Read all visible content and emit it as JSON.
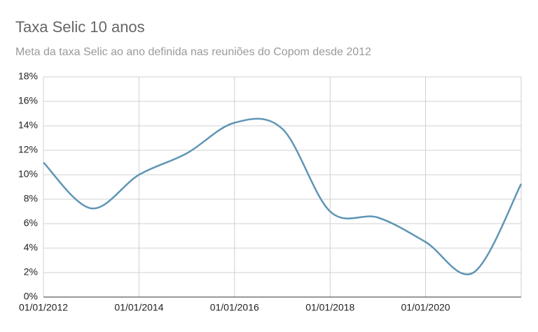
{
  "chart_data": {
    "type": "line",
    "title": "Taxa Selic 10 anos",
    "subtitle": "Meta da taxa Selic ao ano definida nas reuniões do Copom desde 2012",
    "x": [
      "2012-01-01",
      "2013-01-01",
      "2014-01-01",
      "2015-01-01",
      "2016-01-01",
      "2017-01-01",
      "2018-01-01",
      "2019-01-01",
      "2020-01-01",
      "2021-01-01",
      "2022-01-01"
    ],
    "series": [
      {
        "color": "#5f95b5",
        "values": [
          11,
          7.25,
          10,
          11.75,
          14.25,
          13.75,
          7,
          6.5,
          4.5,
          2,
          9.25
        ]
      }
    ],
    "xlim": [
      "2012-01-01",
      "2022-01-01"
    ],
    "xticks": [
      {
        "value": "2012-01-01",
        "label": "01/01/2012"
      },
      {
        "value": "2014-01-01",
        "label": "01/01/2014"
      },
      {
        "value": "2016-01-01",
        "label": "01/01/2016"
      },
      {
        "value": "2018-01-01",
        "label": "01/01/2018"
      },
      {
        "value": "2020-01-01",
        "label": "01/01/2020"
      }
    ],
    "ylim": [
      0,
      18
    ],
    "yticks": [
      {
        "value": 0,
        "label": "0%"
      },
      {
        "value": 2,
        "label": "2%"
      },
      {
        "value": 4,
        "label": "4%"
      },
      {
        "value": 6,
        "label": "6%"
      },
      {
        "value": 8,
        "label": "8%"
      },
      {
        "value": 10,
        "label": "10%"
      },
      {
        "value": 12,
        "label": "12%"
      },
      {
        "value": 14,
        "label": "14%"
      },
      {
        "value": 16,
        "label": "16%"
      },
      {
        "value": 18,
        "label": "18%"
      }
    ],
    "grid": true
  }
}
